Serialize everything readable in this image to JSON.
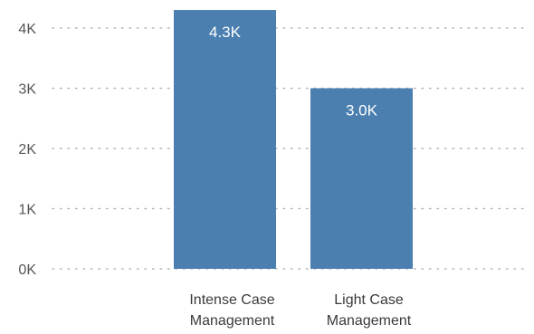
{
  "chart_data": {
    "type": "bar",
    "categories": [
      "Intense Case Management",
      "Light Case Management"
    ],
    "category_label_lines": [
      [
        "Intense Case",
        "Management"
      ],
      [
        "Light Case",
        "Management"
      ]
    ],
    "values": [
      4300,
      3000
    ],
    "data_labels": [
      "4.3K",
      "3.0K"
    ],
    "title": "",
    "xlabel": "",
    "ylabel": "",
    "ylim": [
      0,
      4000
    ],
    "yticks": [
      0,
      1000,
      2000,
      3000,
      4000
    ],
    "ytick_labels": [
      "0K",
      "1K",
      "2K",
      "3K",
      "4K"
    ],
    "grid": "horizontal-dotted",
    "legend": "none",
    "colors": {
      "bar": "#4a7fb0",
      "gridline": "#b5b5b5",
      "tick_text": "#555555",
      "category_text": "#3a3a3a",
      "data_label_text": "#ffffff"
    }
  }
}
